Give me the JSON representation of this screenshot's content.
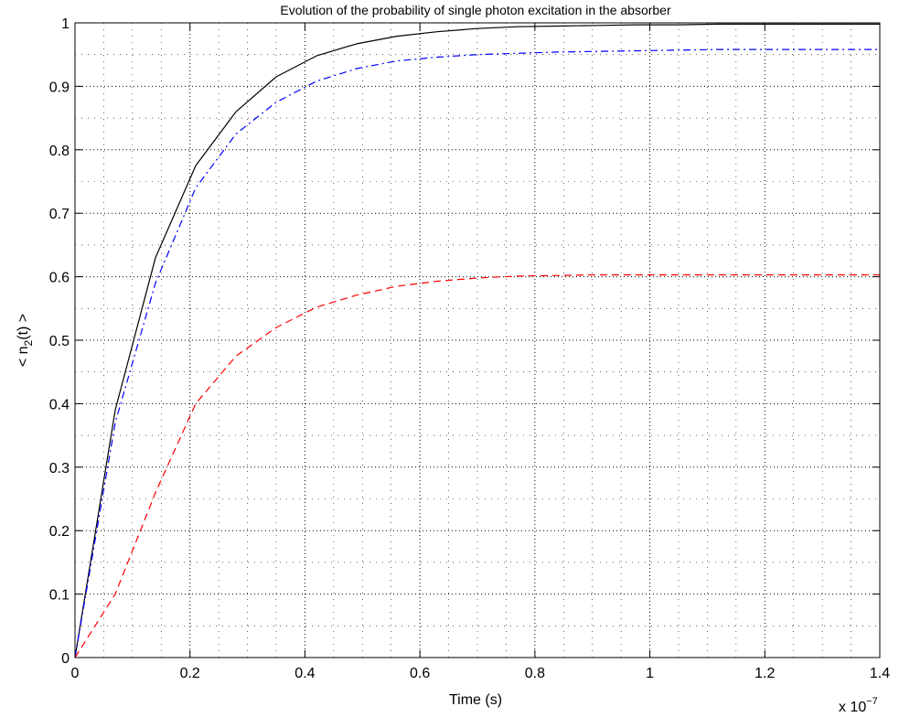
{
  "chart_data": {
    "type": "line",
    "title": "Evolution of the probability of single photon excitation in the absorber",
    "xlabel": "Time (s)",
    "ylabel_parts": {
      "pre": "< n",
      "sub": "2",
      "post": "(t) >"
    },
    "x_exponent_label": {
      "base": "x 10",
      "exp": "−7"
    },
    "xlim": [
      0,
      1.4
    ],
    "ylim": [
      0,
      1
    ],
    "x_ticks": [
      0,
      0.2,
      0.4,
      0.6,
      0.8,
      1,
      1.2,
      1.4
    ],
    "x_tick_labels": [
      "0",
      "0.2",
      "0.4",
      "0.6",
      "0.8",
      "1",
      "1.2",
      "1.4"
    ],
    "y_ticks": [
      0,
      0.1,
      0.2,
      0.3,
      0.4,
      0.5,
      0.6,
      0.7,
      0.8,
      0.9,
      1
    ],
    "y_tick_labels": [
      "0",
      "0.1",
      "0.2",
      "0.3",
      "0.4",
      "0.5",
      "0.6",
      "0.7",
      "0.8",
      "0.9",
      "1"
    ],
    "grid": true,
    "minor_grid": true,
    "series": [
      {
        "color": "#000000",
        "dash": "solid",
        "x": [
          0,
          0.07,
          0.14,
          0.21,
          0.28,
          0.35,
          0.42,
          0.49,
          0.56,
          0.63,
          0.7,
          0.77,
          0.84,
          0.91,
          0.98,
          1.05,
          1.12,
          1.19,
          1.26,
          1.33,
          1.4
        ],
        "y": [
          0,
          0.39,
          0.63,
          0.775,
          0.86,
          0.915,
          0.948,
          0.967,
          0.979,
          0.986,
          0.991,
          0.994,
          0.995,
          0.996,
          0.997,
          0.997,
          0.998,
          0.998,
          0.998,
          0.998,
          0.998
        ]
      },
      {
        "color": "#0000ff",
        "dash": "dashdot",
        "x": [
          0,
          0.07,
          0.14,
          0.21,
          0.28,
          0.35,
          0.42,
          0.49,
          0.56,
          0.63,
          0.7,
          0.77,
          0.84,
          0.91,
          0.98,
          1.05,
          1.12,
          1.19,
          1.26,
          1.33,
          1.4
        ],
        "y": [
          0,
          0.37,
          0.59,
          0.74,
          0.825,
          0.875,
          0.908,
          0.928,
          0.94,
          0.946,
          0.95,
          0.952,
          0.954,
          0.955,
          0.956,
          0.957,
          0.958,
          0.958,
          0.958,
          0.958,
          0.958
        ]
      },
      {
        "color": "#ff0000",
        "dash": "dashed",
        "x": [
          0,
          0.07,
          0.14,
          0.21,
          0.28,
          0.35,
          0.42,
          0.49,
          0.56,
          0.63,
          0.7,
          0.77,
          0.84,
          0.91,
          0.98,
          1.05,
          1.12,
          1.19,
          1.26,
          1.33,
          1.4
        ],
        "y": [
          0,
          0.1,
          0.26,
          0.4,
          0.475,
          0.52,
          0.552,
          0.571,
          0.585,
          0.593,
          0.598,
          0.601,
          0.602,
          0.603,
          0.603,
          0.603,
          0.603,
          0.603,
          0.603,
          0.603,
          0.603
        ]
      }
    ]
  }
}
